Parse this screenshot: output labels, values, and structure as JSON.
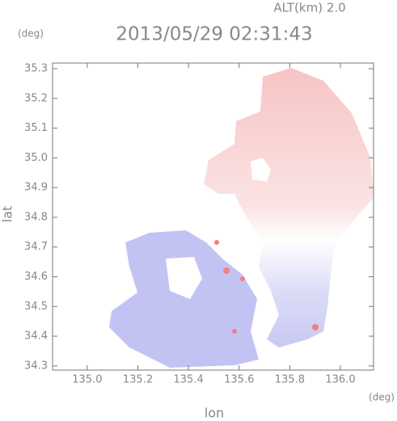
{
  "chart_data": {
    "type": "radar-map",
    "title": "2013/05/29 02:31:43",
    "annotation": "ALT(km) 2.0",
    "x_label": "lon",
    "y_label": "lat",
    "x_unit": "(deg)",
    "y_unit": "(deg)",
    "xlim": [
      134.863,
      136.131
    ],
    "ylim": [
      34.286,
      35.319
    ],
    "xticks": [
      {
        "value": 135.0,
        "label": "135.0"
      },
      {
        "value": 135.2,
        "label": "135.2"
      },
      {
        "value": 135.4,
        "label": "135.4"
      },
      {
        "value": 135.6,
        "label": "135.6"
      },
      {
        "value": 135.8,
        "label": "135.8"
      },
      {
        "value": 136.0,
        "label": "136.0"
      }
    ],
    "yticks": [
      34.3,
      34.4,
      34.5,
      34.6,
      34.7,
      34.8,
      34.9,
      {
        "value": 35.0,
        "label": "35.0"
      },
      35.1,
      35.2,
      35.3
    ]
  }
}
